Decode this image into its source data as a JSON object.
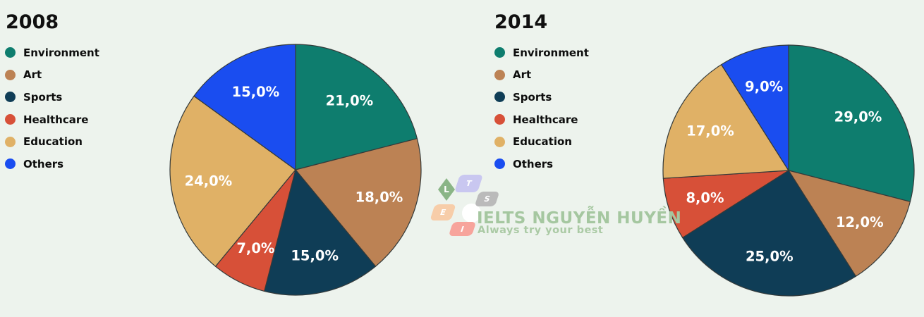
{
  "background_color": "#edf3ed",
  "legend_labels": [
    "Environment",
    "Art",
    "Sports",
    "Healthcare",
    "Education",
    "Others"
  ],
  "palette": {
    "environment": "#0e7d6e",
    "art": "#bc8254",
    "sports": "#0f3d56",
    "healthcare": "#d75038",
    "education": "#e0b166",
    "others": "#1a4df0",
    "slice_outline": "#343a3a",
    "label_text": "#ffffff"
  },
  "chart_data": [
    {
      "type": "pie",
      "title": "2008",
      "categories": [
        "Environment",
        "Art",
        "Sports",
        "Healthcare",
        "Education",
        "Others"
      ],
      "values": [
        21,
        18,
        15,
        7,
        24,
        15
      ],
      "labels": [
        "21,0%",
        "18,0%",
        "15,0%",
        "7,0%",
        "24,0%",
        "15,0%"
      ],
      "colors": [
        "#0e7d6e",
        "#bc8254",
        "#0f3d56",
        "#d75038",
        "#e0b166",
        "#1a4df0"
      ],
      "start_angle_deg": 0,
      "direction": "clockwise",
      "legend_position": "left",
      "label_distance": 0.7
    },
    {
      "type": "pie",
      "title": "2014",
      "categories": [
        "Environment",
        "Art",
        "Sports",
        "Healthcare",
        "Education",
        "Others"
      ],
      "values": [
        29,
        12,
        25,
        8,
        17,
        9
      ],
      "labels": [
        "29,0%",
        "12,0%",
        "25,0%",
        "8,0%",
        "17,0%",
        "9,0%"
      ],
      "colors": [
        "#0e7d6e",
        "#bc8254",
        "#0f3d56",
        "#d75038",
        "#e0b166",
        "#1a4df0"
      ],
      "start_angle_deg": 0,
      "direction": "clockwise",
      "legend_position": "left",
      "label_distance": 0.7
    }
  ],
  "watermark": {
    "brand": "IELTS NGUYỄN HUYỀN",
    "tagline": "Always try your best",
    "brand_color": "#a5c7a0",
    "tagline_color": "#abcaa5",
    "tiles": [
      {
        "letter": "L",
        "color": "#8ab586"
      },
      {
        "letter": "T",
        "color": "#c9c7f0"
      },
      {
        "letter": "S",
        "color": "#bababa"
      },
      {
        "letter": "E",
        "color": "#f7cda9"
      },
      {
        "letter": "I",
        "color": "#f7a49c"
      }
    ]
  }
}
